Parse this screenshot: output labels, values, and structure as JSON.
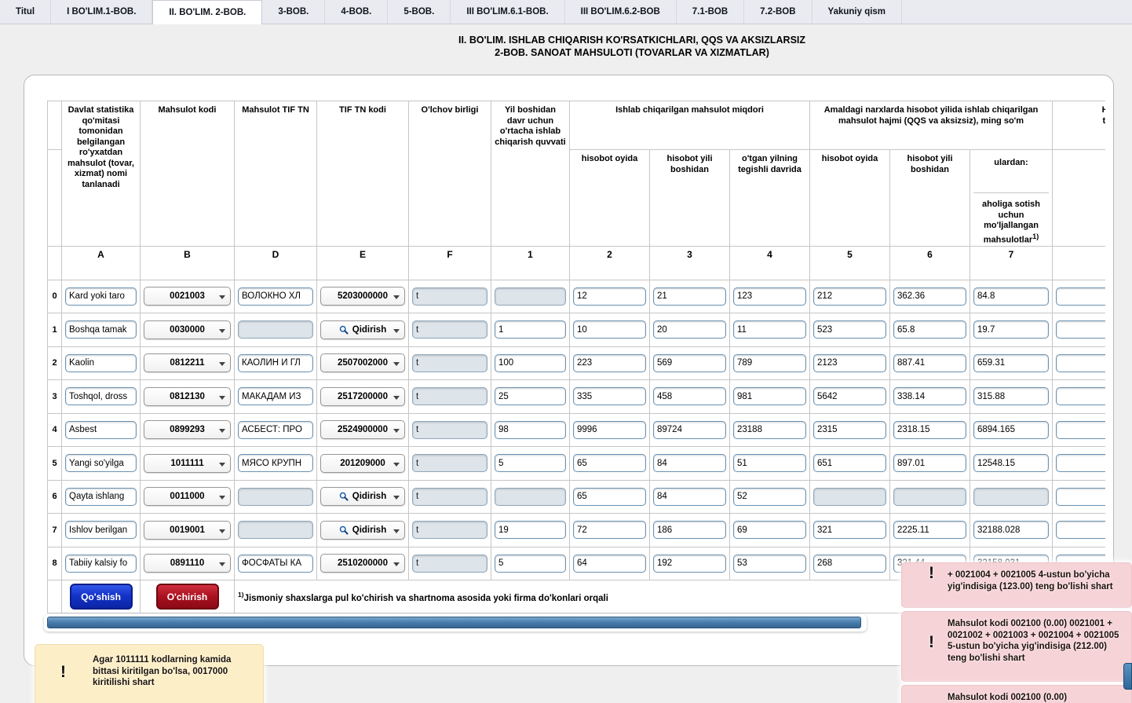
{
  "tabs": {
    "items": [
      "Titul",
      "I BO'LIM.1-BOB.",
      "II. BO'LIM. 2-BOB.",
      "3-BOB.",
      "4-BOB.",
      "5-BOB.",
      "III BO'LIM.6.1-BOB.",
      "III BO'LIM.6.2-BOB",
      "7.1-BOB",
      "7.2-BOB",
      "Yakuniy qism"
    ],
    "active_index": 2
  },
  "title": {
    "line1": "II. BO'LIM. ISHLAB CHIQARISH KO'RSATKICHLARI, QQS VA AKSIZLARSIZ",
    "line2": "2-BOB. SANOAT MAHSULOTI (TOVARLAR VA XIZMATLAR)"
  },
  "table": {
    "headers": {
      "name": "Davlat statistika qo'mitasi tomonidan belgilangan ro'yxatdan mahsulot (tovar, xizmat) nomi tanlanadi",
      "product_code": "Mahsulot kodi",
      "tif_tn": "Mahsulot TIF TN",
      "tif_tn_code": "TIF TN kodi",
      "unit": "O'lchov birligi",
      "capacity": "Yil boshidan davr uchun o'rtacha ishlab chiqarish quvvati",
      "qty_group": "Ishlab chiqarilgan mahsulot miqdori",
      "qty_month": "hisobot oyida",
      "qty_ytd": "hisobot yili boshidan",
      "qty_prev": "o'tgan yilning tegishli davrida",
      "value_group": "Amaldagi narxlarda hisobot yilida ishlab chiqarilgan mahsulot hajmi (QQS va aksizsiz), ming so'm",
      "value_month": "hisobot oyida",
      "value_ytd": "hisobot yili boshidan",
      "value_from": "ulardan:",
      "value_retail": "aholiga sotish uchun mo'ljallangan mahsulotlar",
      "value_retail_sup": "1)",
      "cut_line1": "Hiso",
      "cut_line2": "tayy",
      "cut_sub": "mi"
    },
    "col_letters": [
      "A",
      "B",
      "D",
      "E",
      "F",
      "1",
      "2",
      "3",
      "4",
      "5",
      "6",
      "7"
    ],
    "search_label": "Qidirish",
    "rows": [
      {
        "n": "0",
        "name": "Kard yoki taro",
        "code": "0021003",
        "tif": "ВОЛОКНО ХЛ",
        "tif_code": "5203000000",
        "unit": "t",
        "c1": "",
        "c2": "12",
        "c3": "21",
        "c4": "123",
        "c5": "212",
        "c6": "362.36",
        "c7": "84.8"
      },
      {
        "n": "1",
        "name": "Boshqa tamak",
        "code": "0030000",
        "tif": "",
        "tif_code": "",
        "unit": "t",
        "c1": "1",
        "c2": "10",
        "c3": "20",
        "c4": "11",
        "c5": "523",
        "c6": "65.8",
        "c7": "19.7"
      },
      {
        "n": "2",
        "name": "Kaolin",
        "code": "0812211",
        "tif": "КАОЛИН И ГЛ",
        "tif_code": "2507002000",
        "unit": "t",
        "c1": "100",
        "c2": "223",
        "c3": "569",
        "c4": "789",
        "c5": "2123",
        "c6": "887.41",
        "c7": "659.31"
      },
      {
        "n": "3",
        "name": "Toshqol, dross",
        "code": "0812130",
        "tif": "МАКАДАМ ИЗ",
        "tif_code": "2517200000",
        "unit": "t",
        "c1": "25",
        "c2": "335",
        "c3": "458",
        "c4": "981",
        "c5": "5642",
        "c6": "338.14",
        "c7": "315.88"
      },
      {
        "n": "4",
        "name": "Asbest",
        "code": "0899293",
        "tif": "АСБЕСТ: ПРО",
        "tif_code": "2524900000",
        "unit": "t",
        "c1": "98",
        "c2": "9996",
        "c3": "89724",
        "c4": "23188",
        "c5": "2315",
        "c6": "2318.15",
        "c7": "6894.165"
      },
      {
        "n": "5",
        "name": "Yangi so'yilga",
        "code": "1011111",
        "tif": "МЯСО КРУПН",
        "tif_code": "201209000",
        "unit": "t",
        "c1": "5",
        "c2": "65",
        "c3": "84",
        "c4": "51",
        "c5": "651",
        "c6": "897.01",
        "c7": "12548.15"
      },
      {
        "n": "6",
        "name": "Qayta ishlang",
        "code": "0011000",
        "tif": "",
        "tif_code": "",
        "unit": "t",
        "c1": "",
        "c2": "65",
        "c3": "84",
        "c4": "52",
        "c5": "",
        "c6": "",
        "c7": ""
      },
      {
        "n": "7",
        "name": "Ishlov berilgan",
        "code": "0019001",
        "tif": "",
        "tif_code": "",
        "unit": "t",
        "c1": "19",
        "c2": "72",
        "c3": "186",
        "c4": "69",
        "c5": "321",
        "c6": "2225.11",
        "c7": "32188.028"
      },
      {
        "n": "8",
        "name": "Tabiiy kalsiy fo",
        "code": "0891110",
        "tif": "ФОСФАТЫ КА",
        "tif_code": "2510200000",
        "unit": "t",
        "c1": "5",
        "c2": "64",
        "c3": "192",
        "c4": "53",
        "c5": "268",
        "c6": "321.44",
        "c7": "32158.031"
      }
    ]
  },
  "footer": {
    "add_label": "Qo'shish",
    "delete_label": "O'chirish",
    "footnote_sup": "1)",
    "footnote": "Jismoniy shaxslarga pul ko'chirish va shartnoma asosida yoki firma do'konlari orqali"
  },
  "warnings": {
    "icon_glyph": "!",
    "yellow": {
      "text": "Agar 1011111 kodlarning kamida bittasi kiritilgan bo'lsa, 0017000 kiritilishi shart"
    },
    "pink": [
      {
        "text": "+ 0021004 + 0021005 4-ustun bo'yicha yig'indisiga (123.00) teng bo'lishi shart"
      },
      {
        "text": "Mahsulot kodi 002100 (0.00) 0021001 + 0021002 + 0021003 + 0021004 + 0021005 5-ustun bo'yicha yig'indisiga (212.00) teng bo'lishi shart"
      },
      {
        "text": "Mahsulot kodi 002100 (0.00)"
      }
    ]
  },
  "colors": {
    "accent_blue": "#1433c8",
    "danger_red": "#a9101f",
    "scrollbar_blue": "#4a7fae",
    "input_border": "#6a92b2",
    "disabled_bg": "#dde4ea",
    "warning_pink_bg": "#f6d3d7",
    "warning_yellow_bg": "#fcefc7"
  }
}
